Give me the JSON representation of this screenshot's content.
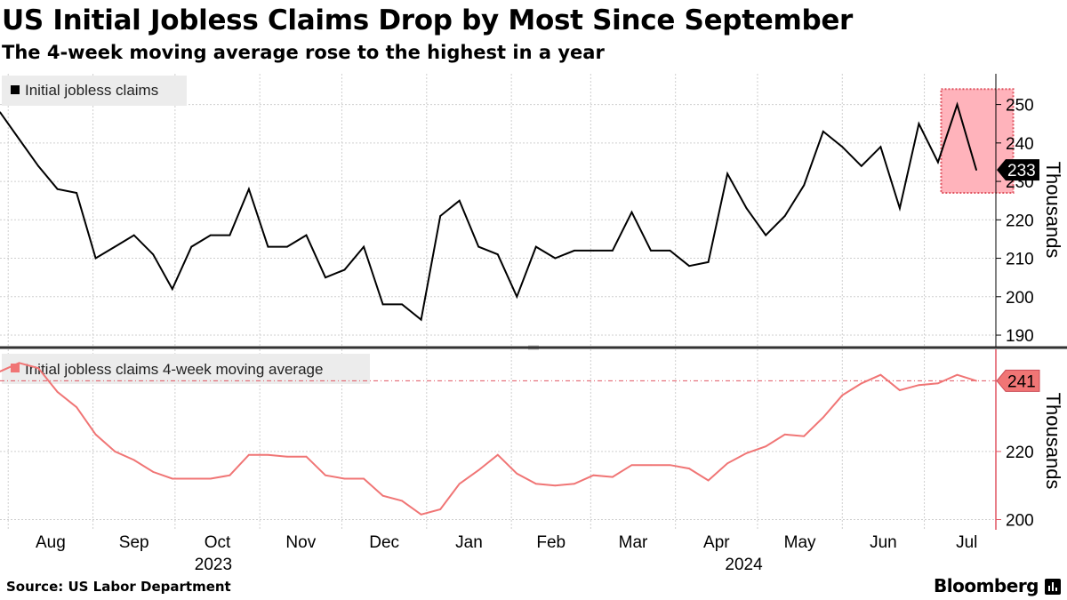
{
  "title": "US Initial Jobless Claims Drop by Most Since September",
  "subtitle": "The 4-week moving average rose to the highest in a year",
  "source": "Source: US Labor Department",
  "brand": "Bloomberg",
  "colors": {
    "claims_line": "#000000",
    "ma_line": "#f07575",
    "highlight_fill": "#ffb3bb",
    "highlight_border": "#e05562",
    "grid": "#cccccc",
    "divider": "#333333"
  },
  "chart_data": [
    {
      "type": "line",
      "legend": "Initial jobless claims",
      "ylabel": "Thousands",
      "ylim": [
        187,
        258
      ],
      "yticks": [
        190,
        200,
        210,
        220,
        230,
        240,
        250
      ],
      "last_value_label": "233",
      "highlight": {
        "x_range": [
          "2024-07-13",
          "2024-07-27"
        ],
        "y_range": [
          227,
          254
        ]
      },
      "series": [
        {
          "name": "Initial jobless claims",
          "x": [
            "2023-07-29",
            "2023-08-05",
            "2023-08-12",
            "2023-08-19",
            "2023-08-26",
            "2023-09-02",
            "2023-09-09",
            "2023-09-16",
            "2023-09-23",
            "2023-09-30",
            "2023-10-07",
            "2023-10-14",
            "2023-10-21",
            "2023-10-28",
            "2023-11-04",
            "2023-11-11",
            "2023-11-18",
            "2023-11-25",
            "2023-12-02",
            "2023-12-09",
            "2023-12-16",
            "2023-12-23",
            "2023-12-30",
            "2024-01-06",
            "2024-01-13",
            "2024-01-20",
            "2024-01-27",
            "2024-02-03",
            "2024-02-10",
            "2024-02-17",
            "2024-02-24",
            "2024-03-02",
            "2024-03-09",
            "2024-03-16",
            "2024-03-23",
            "2024-03-30",
            "2024-04-06",
            "2024-04-13",
            "2024-04-20",
            "2024-04-27",
            "2024-05-04",
            "2024-05-11",
            "2024-05-18",
            "2024-05-25",
            "2024-06-01",
            "2024-06-08",
            "2024-06-15",
            "2024-06-22",
            "2024-06-29",
            "2024-07-06",
            "2024-07-13",
            "2024-07-20"
          ],
          "values": [
            248,
            241,
            234,
            228,
            227,
            210,
            213,
            216,
            211,
            202,
            213,
            216,
            216,
            228,
            213,
            213,
            216,
            205,
            207,
            213,
            198,
            198,
            194,
            221,
            225,
            213,
            211,
            200,
            213,
            210,
            212,
            212,
            212,
            222,
            212,
            212,
            208,
            209,
            232,
            223,
            216,
            221,
            229,
            243,
            239,
            234,
            239,
            223,
            245,
            235,
            250,
            233
          ]
        }
      ],
      "x_month_labels": [
        "Aug",
        "Sep",
        "Oct",
        "Nov",
        "Dec",
        "Jan",
        "Feb",
        "Mar",
        "Apr",
        "May",
        "Jun",
        "Jul"
      ],
      "x_year_labels": [
        "2023",
        "2024"
      ]
    },
    {
      "type": "line",
      "legend": "Initial jobless claims 4-week moving average",
      "ylabel": "Thousands",
      "ylim": [
        197,
        250
      ],
      "yticks": [
        200,
        220
      ],
      "reference_line": 240.75,
      "last_value_label": "241",
      "series": [
        {
          "name": "Initial jobless claims 4-week moving average",
          "x": [
            "2023-07-29",
            "2023-08-05",
            "2023-08-12",
            "2023-08-19",
            "2023-08-26",
            "2023-09-02",
            "2023-09-09",
            "2023-09-16",
            "2023-09-23",
            "2023-09-30",
            "2023-10-07",
            "2023-10-14",
            "2023-10-21",
            "2023-10-28",
            "2023-11-04",
            "2023-11-11",
            "2023-11-18",
            "2023-11-25",
            "2023-12-02",
            "2023-12-09",
            "2023-12-16",
            "2023-12-23",
            "2023-12-30",
            "2024-01-06",
            "2024-01-13",
            "2024-01-20",
            "2024-01-27",
            "2024-02-03",
            "2024-02-10",
            "2024-02-17",
            "2024-02-24",
            "2024-03-02",
            "2024-03-09",
            "2024-03-16",
            "2024-03-23",
            "2024-03-30",
            "2024-04-06",
            "2024-04-13",
            "2024-04-20",
            "2024-04-27",
            "2024-05-04",
            "2024-05-11",
            "2024-05-18",
            "2024-05-25",
            "2024-06-01",
            "2024-06-08",
            "2024-06-15",
            "2024-06-22",
            "2024-06-29",
            "2024-07-06",
            "2024-07-13",
            "2024-07-20"
          ],
          "values": [
            243.5,
            246.0,
            244.5,
            237.5,
            233.0,
            225.0,
            220.0,
            217.5,
            214.0,
            212.0,
            212.0,
            212.0,
            213.0,
            219.0,
            219.0,
            218.5,
            218.5,
            213.0,
            212.0,
            212.0,
            207.0,
            205.5,
            201.5,
            203.0,
            210.5,
            214.5,
            219.0,
            213.5,
            210.5,
            210.0,
            210.5,
            213.0,
            212.5,
            216.0,
            216.0,
            216.0,
            215.0,
            211.5,
            216.5,
            219.5,
            221.5,
            225.0,
            224.5,
            230.0,
            236.5,
            240.0,
            242.5,
            238.0,
            239.5,
            240.0,
            242.5,
            240.75
          ]
        }
      ]
    }
  ]
}
